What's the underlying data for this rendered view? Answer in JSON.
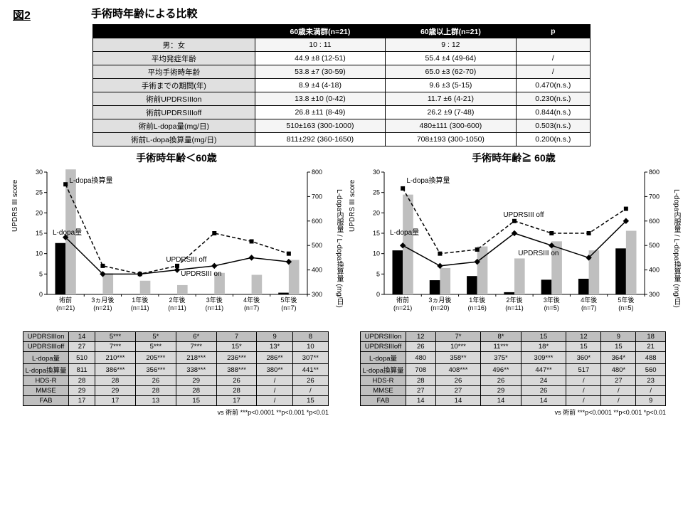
{
  "figure_label": "図2",
  "figure_title": "手術時年齢による比較",
  "top_table": {
    "headers": [
      "",
      "60歳未満群(n=21)",
      "60歳以上群(n=21)",
      "p"
    ],
    "rows": [
      {
        "label": "男：女",
        "a": "10 : 11",
        "b": "9 : 12",
        "p": ""
      },
      {
        "label": "平均発症年齢",
        "a": "44.9 ±8  (12-51)",
        "b": "55.4 ±4  (49-64)",
        "p": "/"
      },
      {
        "label": "平均手術時年齢",
        "a": "53.8 ±7  (30-59)",
        "b": "65.0 ±3  (62-70)",
        "p": "/"
      },
      {
        "label": "手術までの期間(年)",
        "a": "8.9 ±4  (4-18)",
        "b": "9.6 ±3  (5-15)",
        "p": "0.470(n.s.)"
      },
      {
        "label": "術前UPDRSIIIon",
        "a": "13.8 ±10  (0-42)",
        "b": "11.7 ±6  (4-21)",
        "p": "0.230(n.s.)"
      },
      {
        "label": "術前UPDRSIIIoff",
        "a": "26.8 ±11  (8-49)",
        "b": "26.2 ±9  (7-48)",
        "p": "0.844(n.s.)"
      },
      {
        "label": "術前L-dopa量(mg/日)",
        "a": "510±163  (300-1000)",
        "b": "480±111  (300-600)",
        "p": "0.503(n.s.)"
      },
      {
        "label": "術前L-dopa換算量(mg/日)",
        "a": "811±292  (360-1650)",
        "b": "708±193  (300-1050)",
        "p": "0.200(n.s.)"
      }
    ]
  },
  "left_ylabel": "UPDRS III score",
  "right_ylabel": "L-dopa内服量 / L-dopa換算量  (mg/日)",
  "left_axis": {
    "min": 0,
    "max": 30,
    "ticks": [
      0,
      5,
      10,
      15,
      20,
      25,
      30
    ]
  },
  "right_axis": {
    "min": 300,
    "max": 800,
    "ticks": [
      300,
      400,
      500,
      600,
      700,
      800
    ]
  },
  "panels": [
    {
      "title": "手術時年齢＜60歳",
      "xcats": [
        [
          "術前",
          "(n=21)"
        ],
        [
          "3ヵ月後",
          "(n=21)"
        ],
        [
          "1年後",
          "(n=11)"
        ],
        [
          "2年後",
          "(n=11)"
        ],
        [
          "3年後",
          "(n=11)"
        ],
        [
          "4年後",
          "(n=7)"
        ],
        [
          "5年後",
          "(n=7)"
        ]
      ],
      "ldopa": [
        510,
        210,
        205,
        218,
        236,
        286,
        307
      ],
      "ldopa_eq": [
        811,
        386,
        356,
        338,
        388,
        380,
        441
      ],
      "updrs_on": [
        14,
        5,
        5,
        6,
        7,
        9,
        8
      ],
      "updrs_off": [
        27,
        7,
        5,
        7,
        15,
        13,
        10
      ],
      "chart_labels": {
        "ldopa": "L-dopa量",
        "ldopa_eq": "L-dopa換算量",
        "off": "UPDRSIII off",
        "on": "UPDRSIII on"
      },
      "table": [
        [
          "UPDRSIIIon",
          "14",
          "5***",
          "5*",
          "6*",
          "7",
          "9",
          "8"
        ],
        [
          "UPDRSIIIoff",
          "27",
          "7***",
          "5***",
          "7***",
          "15*",
          "13*",
          "10"
        ],
        [
          "L-dopa量",
          "510",
          "210***",
          "205***",
          "218***",
          "236***",
          "286**",
          "307**"
        ],
        [
          "L-dopa換算量",
          "811",
          "386***",
          "356***",
          "338***",
          "388***",
          "380**",
          "441**"
        ],
        [
          "HDS-R",
          "28",
          "28",
          "26",
          "29",
          "26",
          "/",
          "26"
        ],
        [
          "MMSE",
          "29",
          "29",
          "28",
          "28",
          "28",
          "/",
          "/"
        ],
        [
          "FAB",
          "17",
          "17",
          "13",
          "15",
          "17",
          "/",
          "15"
        ]
      ]
    },
    {
      "title": "手術時年齢≧ 60歳",
      "xcats": [
        [
          "術前",
          "(n=21)"
        ],
        [
          "3ヵ月後",
          "(n=20)"
        ],
        [
          "1年後",
          "(n=16)"
        ],
        [
          "2年後",
          "(n=11)"
        ],
        [
          "3年後",
          "(n=5)"
        ],
        [
          "4年後",
          "(n=7)"
        ],
        [
          "5年後",
          "(n=5)"
        ]
      ],
      "ldopa": [
        480,
        358,
        375,
        309,
        360,
        364,
        488
      ],
      "ldopa_eq": [
        708,
        408,
        496,
        447,
        517,
        480,
        560
      ],
      "updrs_on": [
        12,
        7,
        8,
        15,
        12,
        9,
        18
      ],
      "updrs_off": [
        26,
        10,
        11,
        18,
        15,
        15,
        21
      ],
      "chart_labels": {
        "ldopa": "L-dopa量",
        "ldopa_eq": "L-dopa換算量",
        "off": "UPDRSIII off",
        "on": "UPDRSIII on"
      },
      "table": [
        [
          "UPDRSIIIon",
          "12",
          "7*",
          "8*",
          "15",
          "12",
          "9",
          "18"
        ],
        [
          "UPDRSIIIoff",
          "26",
          "10***",
          "11***",
          "18*",
          "15",
          "15",
          "21"
        ],
        [
          "L-dopa量",
          "480",
          "358**",
          "375*",
          "309***",
          "360*",
          "364*",
          "488"
        ],
        [
          "L-dopa換算量",
          "708",
          "408***",
          "496**",
          "447**",
          "517",
          "480*",
          "560"
        ],
        [
          "HDS-R",
          "28",
          "26",
          "26",
          "24",
          "/",
          "27",
          "23"
        ],
        [
          "MMSE",
          "27",
          "27",
          "29",
          "26",
          "/",
          "/",
          "/"
        ],
        [
          "FAB",
          "14",
          "14",
          "14",
          "14",
          "/",
          "/",
          "9"
        ]
      ]
    }
  ],
  "pnote": "vs 術前   ***p<0.0001  **p<0.001  *p<0.01"
}
